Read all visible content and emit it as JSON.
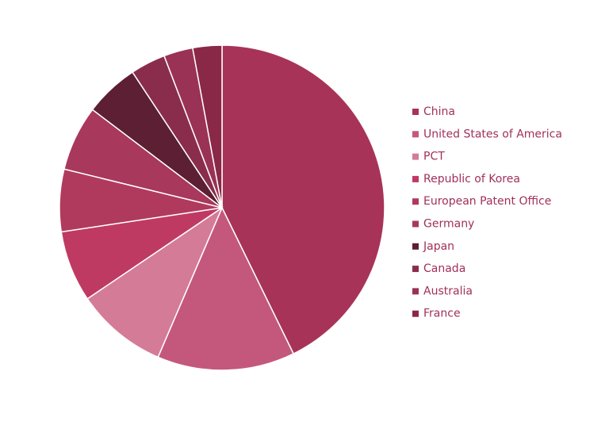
{
  "chart_data": {
    "type": "pie",
    "categories": [
      "China",
      "United States of America",
      "PCT",
      "Republic of Korea",
      "European Patent Office",
      "Germany",
      "Japan",
      "Canada",
      "Australia",
      "France"
    ],
    "values": [
      42.8,
      13.7,
      9.1,
      7.1,
      6.2,
      6.5,
      5.4,
      3.5,
      2.9,
      2.9
    ],
    "colors": [
      "#a83358",
      "#c4587c",
      "#d47b98",
      "#bf3a63",
      "#b03a5e",
      "#a8385c",
      "#5c1f33",
      "#8a2d4c",
      "#9a3255",
      "#8a2848"
    ],
    "legend": "right"
  }
}
